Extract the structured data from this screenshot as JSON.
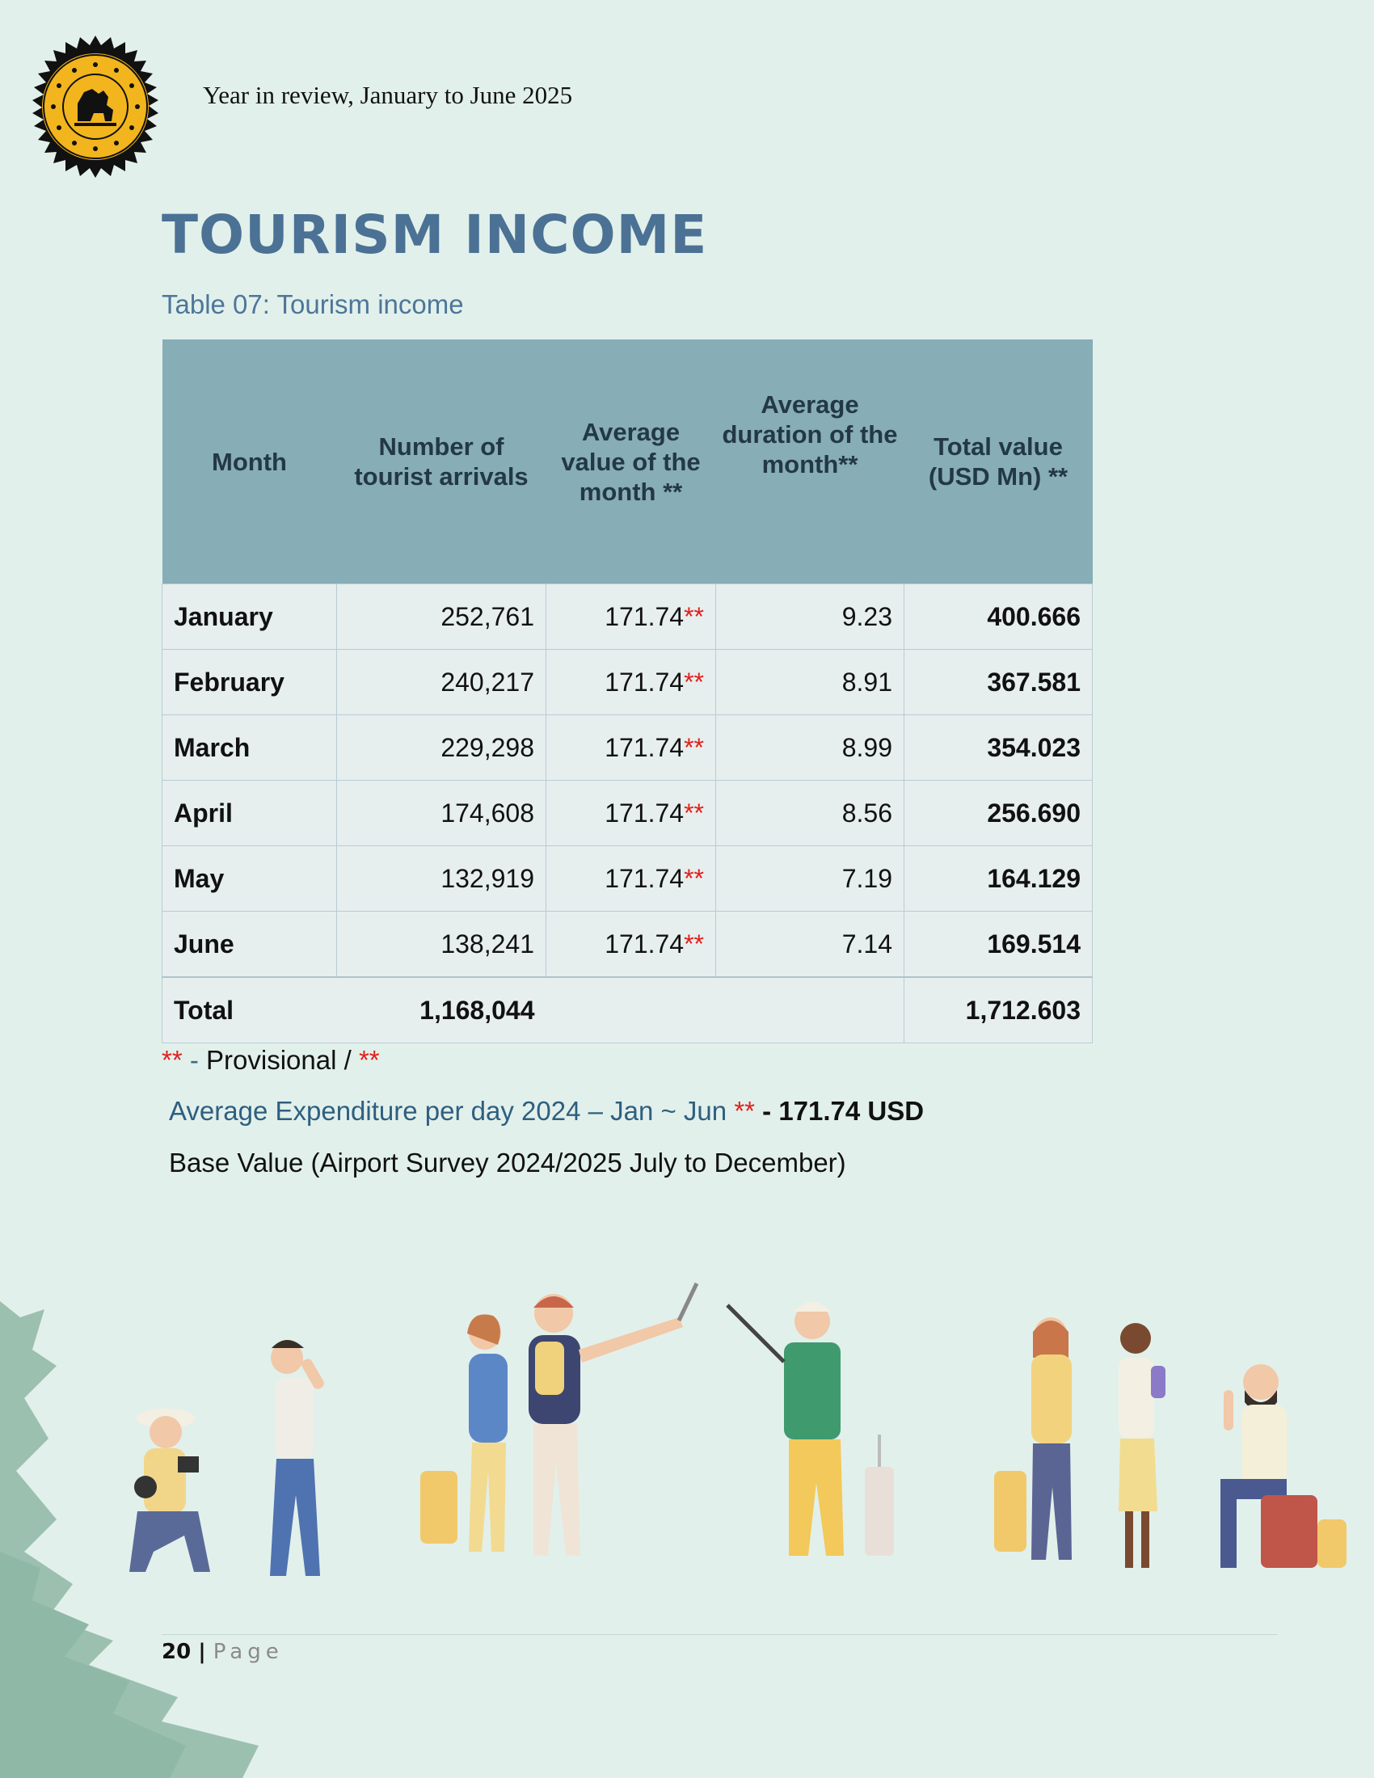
{
  "header": {
    "title": "Year in review, January to June 2025",
    "logo": "sri-lanka-tourism-seal"
  },
  "page_title": "TOURISM INCOME",
  "table_caption": "Table 07: Tourism income",
  "table": {
    "headers": [
      "Month",
      "Number of tourist arrivals",
      "Average value of the month **",
      "Average duration of the month**",
      "Total value (USD Mn) **"
    ],
    "rows": [
      {
        "month": "January",
        "arrivals": "252,761",
        "avg_value": "171.74",
        "mark": "**",
        "duration": "9.23",
        "total": "400.666"
      },
      {
        "month": "February",
        "arrivals": "240,217",
        "avg_value": "171.74",
        "mark": "**",
        "duration": "8.91",
        "total": "367.581"
      },
      {
        "month": "March",
        "arrivals": "229,298",
        "avg_value": "171.74",
        "mark": "**",
        "duration": "8.99",
        "total": "354.023"
      },
      {
        "month": "April",
        "arrivals": "174,608",
        "avg_value": "171.74",
        "mark": "**",
        "duration": "8.56",
        "total": "256.690"
      },
      {
        "month": "May",
        "arrivals": "132,919",
        "avg_value": "171.74",
        "mark": "**",
        "duration": "7.19",
        "total": "164.129"
      },
      {
        "month": "June",
        "arrivals": "138,241",
        "avg_value": "171.74",
        "mark": "**",
        "duration": "7.14",
        "total": "169.514"
      }
    ],
    "total": {
      "label": "Total",
      "arrivals": "1,168,044",
      "value": "1,712.603"
    }
  },
  "notes": {
    "provisional": {
      "mark1": "**",
      "dash": " - ",
      "text": "Provisional / ",
      "mark2": "**"
    },
    "avg_expenditure": {
      "text": "Average Expenditure per day 2024 – Jan ~ Jun ",
      "mark": "**",
      "value": " - 171.74 USD"
    },
    "base_value": "Base Value (Airport Survey 2024/2025 July to December)"
  },
  "footer": {
    "page_number": "20",
    "separator": " | ",
    "page_label": "Page"
  },
  "colors": {
    "background": "#e2f0eb",
    "title": "#4b7194",
    "header_fill": "#87adb7",
    "cell_fill": "#e7eeee",
    "asterisk": "#e0201d"
  }
}
